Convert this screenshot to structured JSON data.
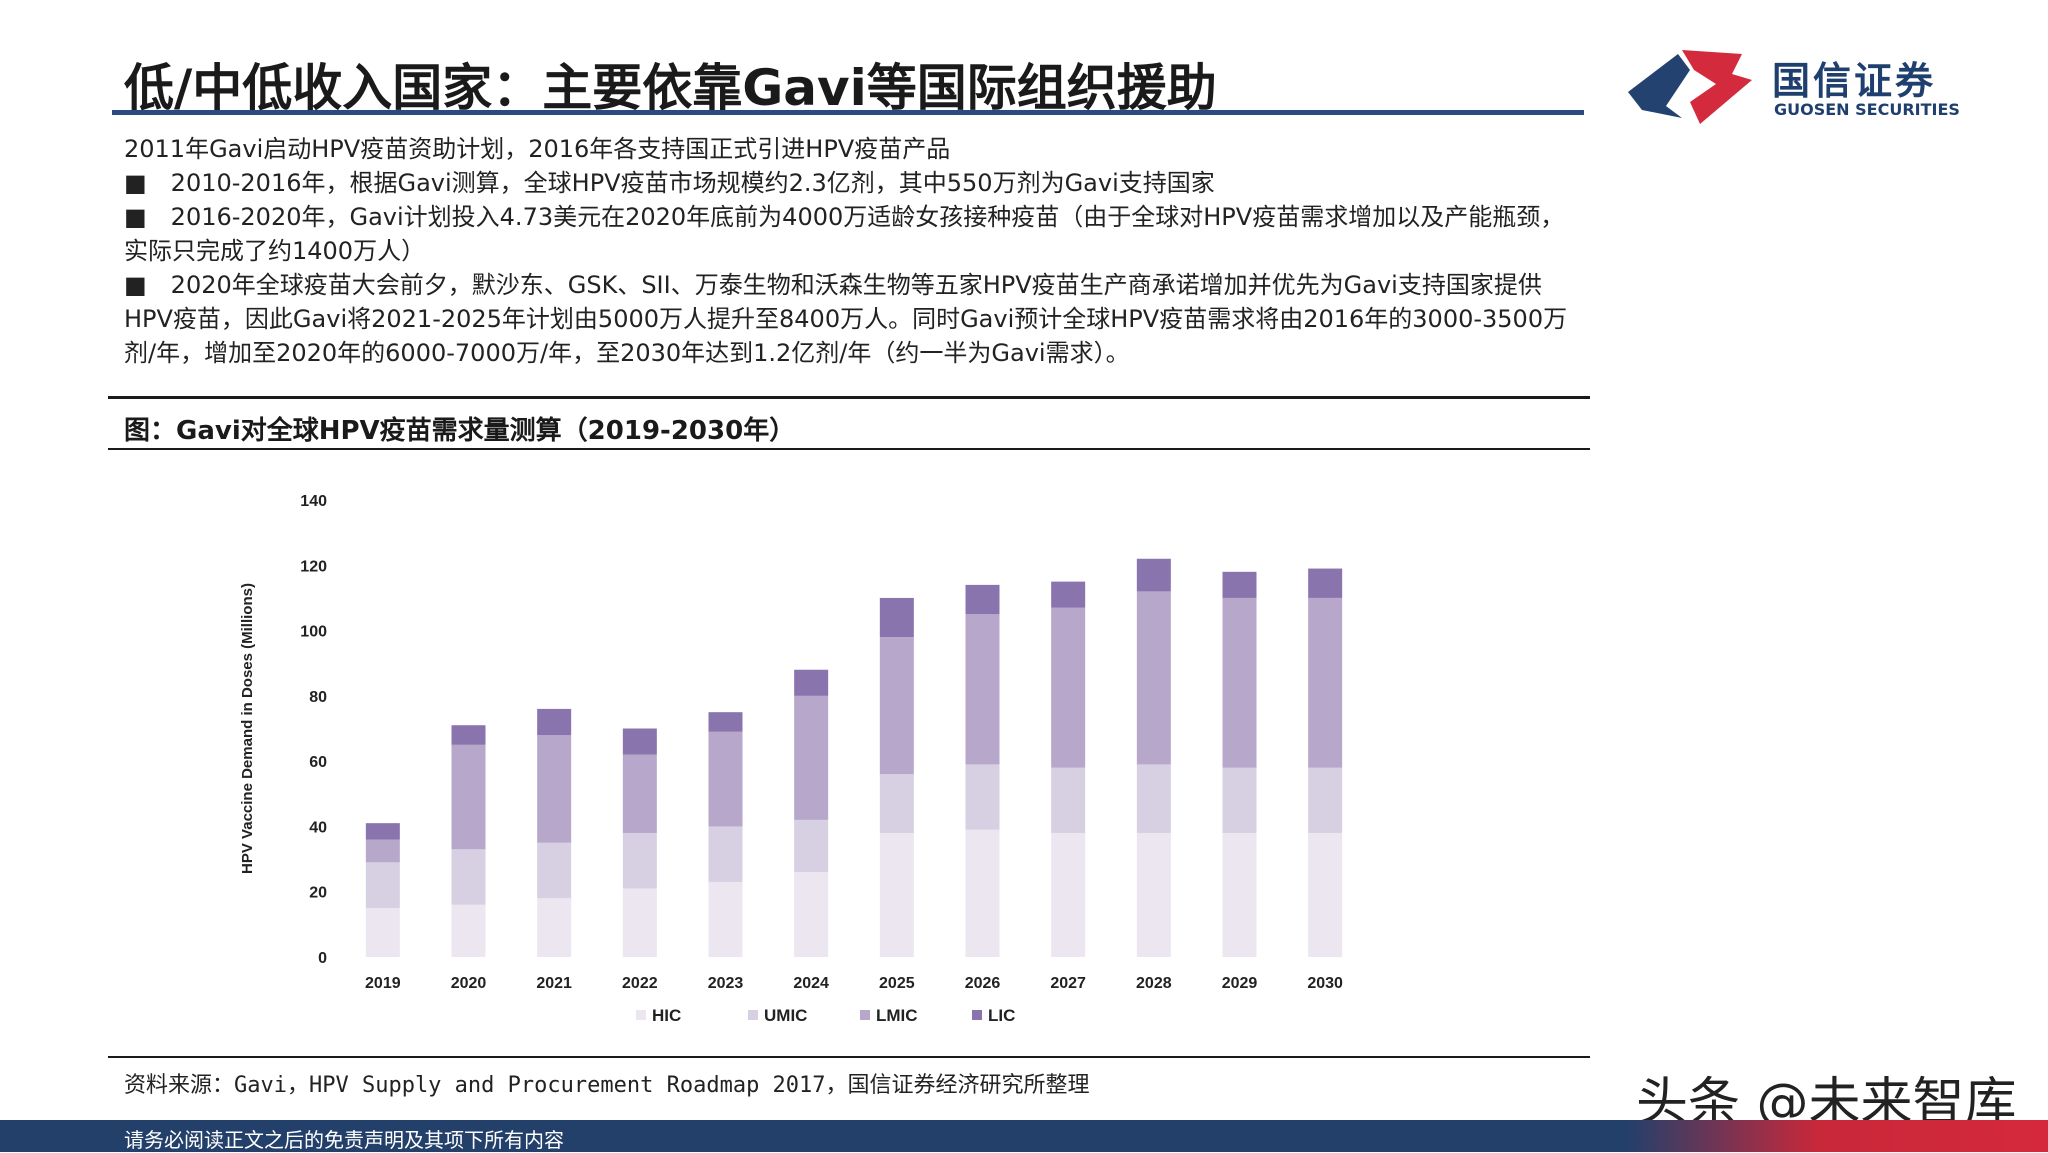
{
  "header": {
    "title": "低/中低收入国家：主要依靠Gavi等国际组织援助",
    "logo_cn": "国信证券",
    "logo_en": "GUOSEN SECURITIES"
  },
  "body": {
    "line1": "2011年Gavi启动HPV疫苗资助计划，2016年各支持国正式引进HPV疫苗产品",
    "bullet1": "■　2010-2016年，根据Gavi测算，全球HPV疫苗市场规模约2.3亿剂，其中550万剂为Gavi支持国家",
    "bullet2": "■　2016-2020年，Gavi计划投入4.73美元在2020年底前为4000万适龄女孩接种疫苗（由于全球对HPV疫苗需求增加以及产能瓶颈，实际只完成了约1400万人）",
    "bullet3": "■　2020年全球疫苗大会前夕，默沙东、GSK、SII、万泰生物和沃森生物等五家HPV疫苗生产商承诺增加并优先为Gavi支持国家提供HPV疫苗，因此Gavi将2021-2025年计划由5000万人提升至8400万人。同时Gavi预计全球HPV疫苗需求将由2016年的3000-3500万剂/年，增加至2020年的6000-7000万/年，至2030年达到1.2亿剂/年（约一半为Gavi需求）。"
  },
  "figure": {
    "title": "图：Gavi对全球HPV疫苗需求量测算（2019-2030年）",
    "source": "资料来源：Gavi，HPV Supply and Procurement Roadmap 2017，国信证券经济研究所整理"
  },
  "watermark": "头条 @未来智库",
  "footer": {
    "disclaimer": "请务必阅读正文之后的免责声明及其项下所有内容"
  },
  "chart_data": {
    "type": "bar",
    "stacked": true,
    "categories": [
      "2019",
      "2020",
      "2021",
      "2022",
      "2023",
      "2024",
      "2025",
      "2026",
      "2027",
      "2028",
      "2029",
      "2030"
    ],
    "series": [
      {
        "name": "HIC",
        "color": "#ebe6f0",
        "values": [
          15,
          16,
          18,
          21,
          23,
          26,
          38,
          39,
          38,
          38,
          38,
          38
        ]
      },
      {
        "name": "UMIC",
        "color": "#d7cfe2",
        "values": [
          14,
          17,
          17,
          17,
          17,
          16,
          18,
          20,
          20,
          21,
          20,
          20
        ]
      },
      {
        "name": "LMIC",
        "color": "#b6a7cb",
        "values": [
          7,
          32,
          33,
          24,
          29,
          38,
          42,
          46,
          49,
          53,
          52,
          52
        ]
      },
      {
        "name": "LIC",
        "color": "#8a74ad",
        "values": [
          5,
          6,
          8,
          8,
          6,
          8,
          12,
          9,
          8,
          10,
          8,
          9
        ]
      }
    ],
    "ylabel": "HPV Vaccine Demand in Doses (Millions)",
    "xlabel": "",
    "ylim": [
      0,
      140
    ],
    "yticks": [
      0,
      20,
      40,
      60,
      80,
      100,
      120,
      140
    ],
    "grid": false,
    "legend": "bottom"
  }
}
